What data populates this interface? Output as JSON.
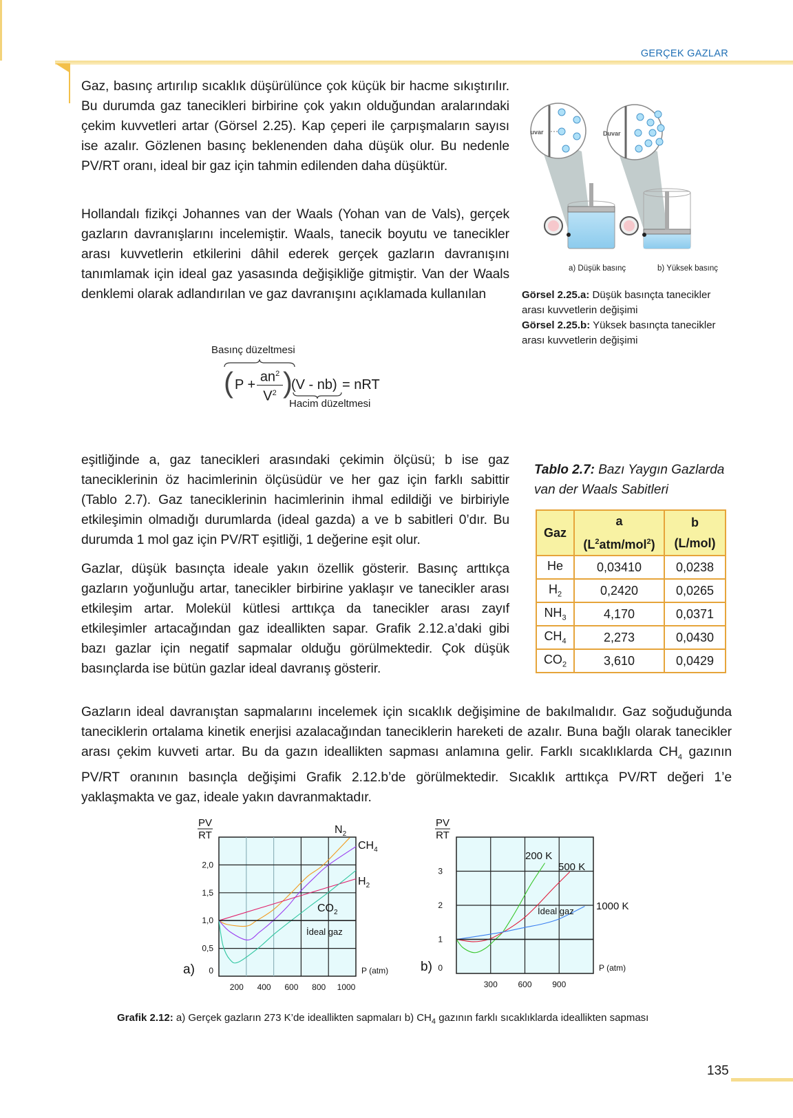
{
  "header": {
    "running_title": "GERÇEK GAZLAR"
  },
  "paragraphs": [
    "Gaz, basınç artırılıp sıcaklık düşürülünce çok küçük bir hacme sıkıştırılır. Bu durumda gaz tanecikleri birbirine çok yakın olduğundan aralarındaki çekim kuvvetleri artar (Görsel 2.25). Kap çeperi ile çarpışmaların sayısı ise azalır. Gözlenen basınç beklenenden daha düşük olur. Bu nedenle PV/RT oranı, ideal bir gaz için tahmin edilenden daha düşüktür.",
    "Hollandalı fizikçi Johannes van der Waals (Yohan van de Vals), gerçek gazların davranışlarını incelemiştir. Waals, tanecik boyutu ve tanecikler arası kuvvetlerin etkilerini dâhil ederek gerçek gazların davranışını tanımlamak için ideal gaz yasasında değişikliğe gitmiştir. Van der Waals denklemi olarak adlandırılan ve gaz davranışını açıklamada kullanılan",
    "eşitliğinde a, gaz tanecikleri arasındaki çekimin ölçüsü; b ise gaz taneciklerinin öz hacimlerinin ölçüsüdür ve her gaz için farklı sabittir (Tablo 2.7). Gaz taneciklerinin hacimlerinin ihmal edildiği ve birbiriyle etkileşimin olmadığı durumlarda (ideal gazda) a ve b sabitleri 0’dır. Bu durumda 1 mol gaz için PV/RT eşitliği, 1 değerine eşit olur.",
    "Gazlar, düşük basınçta ideale yakın özellik gösterir. Basınç arttıkça gazların yoğunluğu artar, tanecikler birbirine yaklaşır ve tanecikler arası etkileşim artar. Molekül kütlesi arttıkça da tanecikler arası zayıf etkileşimler artacağından gaz ideallikten sapar. Grafik 2.12.a’daki gibi bazı gazlar için negatif sapmalar olduğu görülmektedir. Çok düşük basınçlarda ise bütün gazlar ideal davranış gösterir."
  ],
  "paragraph5": {
    "part1": "Gazların ideal davranıştan sapmalarını incelemek için sıcaklık değişimine de bakılmalıdır. Gaz soğuduğunda taneciklerin ortalama kinetik enerjisi azalacağından taneciklerin hareketi de azalır. Buna bağlı olarak tanecikler arası çekim kuvveti artar. Bu da gazın ideallikten sapması anlamına gelir. Farklı sıcaklıklarda CH",
    "sub": "4",
    "part2": " gazının PV/RT oranının basınçla değişimi Grafik 2.12.b’de görülmektedir. Sıcaklık arttıkça PV/RT değeri 1’e yaklaşmakta ve gaz, ideale yakın davranmaktadır."
  },
  "equation": {
    "top_label": "Basınç düzeltmesi",
    "bottom_label": "Hacim düzeltmesi",
    "p_plus": "P +",
    "numerator": "an",
    "num_exp": "2",
    "denominator": "V",
    "den_exp": "2",
    "volume_term": "(V - nb)",
    "rhs": "= nRT"
  },
  "figure": {
    "wall_label": "Duvar",
    "label_a": "a) Düşük basınç",
    "label_b": "b) Yüksek basınç",
    "caption_a_bold": "Görsel 2.25.a:",
    "caption_a": " Düşük basınçta tanecikler arası kuvvetlerin değişimi",
    "caption_b_bold": "Görsel 2.25.b:",
    "caption_b": " Yüksek basınçta tanecikler arası kuvvetlerin değişimi"
  },
  "table": {
    "title_bold": "Tablo 2.7:",
    "title": " Bazı Yaygın Gazlarda van der Waals Sabitleri",
    "headers": {
      "gaz": "Gaz",
      "a": "a",
      "a_unit_pre": "(L",
      "a_unit_exp": "2",
      "a_unit_mid": "atm/mol",
      "a_unit_exp2": "2",
      "a_unit_post": ")",
      "b": "b",
      "b_unit": "(L/mol)"
    },
    "rows": [
      {
        "gas": "He",
        "sub": "",
        "a": "0,03410",
        "b": "0,0238"
      },
      {
        "gas": "H",
        "sub": "2",
        "a": "0,2420",
        "b": "0,0265"
      },
      {
        "gas": "NH",
        "sub": "3",
        "a": "4,170",
        "b": "0,0371"
      },
      {
        "gas": "CH",
        "sub": "4",
        "a": "2,273",
        "b": "0,0430"
      },
      {
        "gas": "CO",
        "sub": "2",
        "a": "3,610",
        "b": "0,0429"
      }
    ],
    "border_color": "#e6a43a",
    "header_bg": "#f8f2a3"
  },
  "chart_data": [
    {
      "type": "line",
      "panel_label": "a)",
      "ylabel_num": "PV",
      "ylabel_den": "RT",
      "xlabel": "P (atm)",
      "xlim": [
        0,
        1000
      ],
      "ylim": [
        0,
        2.5
      ],
      "xticks": [
        200,
        400,
        600,
        800,
        1000
      ],
      "xtick_labels": [
        "200",
        "400",
        "600",
        "800",
        "1000"
      ],
      "yticks": [
        0,
        0.5,
        1.0,
        1.5,
        2.0
      ],
      "ytick_labels": [
        "0",
        "0,5",
        "1,0",
        "1,5",
        "2,0"
      ],
      "grid": true,
      "background": "#e6fafc",
      "ideal_label": "İdeal gaz",
      "series": [
        {
          "name": "N₂",
          "color": "#f29b1f",
          "x": [
            0,
            60,
            200,
            276,
            400,
            528,
            650,
            762,
            955
          ],
          "y": [
            1.0,
            0.93,
            0.9,
            1.0,
            1.2,
            1.5,
            1.8,
            2.0,
            2.49
          ]
        },
        {
          "name": "CH₄",
          "color": "#9b3ff0",
          "x": [
            0,
            80,
            209,
            300,
            397,
            500,
            586,
            700,
            800,
            1000
          ],
          "y": [
            1.0,
            0.8,
            0.65,
            0.8,
            1.0,
            1.25,
            1.5,
            1.78,
            2.0,
            2.33
          ]
        },
        {
          "name": "H₂",
          "color": "#e0206a",
          "x": [
            0,
            1000
          ],
          "y": [
            1.0,
            1.75
          ]
        },
        {
          "name": "CO₂",
          "color": "#2fc6a0",
          "x": [
            0,
            30,
            80,
            140,
            285,
            400,
            528,
            660,
            796,
            1000
          ],
          "y": [
            1.0,
            0.55,
            0.3,
            0.25,
            0.5,
            0.75,
            1.0,
            1.25,
            1.5,
            1.9
          ]
        },
        {
          "name": "İdeal gaz",
          "color": "#222222",
          "x": [
            0,
            1000
          ],
          "y": [
            1.0,
            1.0
          ]
        }
      ],
      "labels": {
        "n2": "N",
        "n2_sub": "2",
        "ch4": "CH",
        "ch4_sub": "4",
        "h2": "H",
        "h2_sub": "2",
        "co2": "CO",
        "co2_sub": "2"
      }
    },
    {
      "type": "line",
      "panel_label": "b)",
      "ylabel_num": "PV",
      "ylabel_den": "RT",
      "xlabel": "P (atm)",
      "xlim": [
        0,
        1200
      ],
      "ylim": [
        0,
        4
      ],
      "xticks": [
        300,
        600,
        900
      ],
      "xtick_labels": [
        "300",
        "600",
        "900"
      ],
      "yticks": [
        0,
        1,
        2,
        3
      ],
      "ytick_labels": [
        "0",
        "1",
        "2",
        "3"
      ],
      "grid": true,
      "background": "#e6fafc",
      "ideal_label": "İdeal gaz",
      "series": [
        {
          "name": "200 K",
          "color": "#38c62a",
          "x": [
            0,
            60,
            161,
            260,
            342,
            403,
            480,
            550,
            650,
            775
          ],
          "y": [
            1.0,
            0.75,
            0.61,
            0.75,
            1.0,
            1.2,
            1.6,
            2.0,
            2.6,
            3.24
          ]
        },
        {
          "name": "500 K",
          "color": "#e01e3c",
          "x": [
            0,
            150,
            282,
            403,
            500,
            600,
            709,
            850,
            993
          ],
          "y": [
            1.0,
            0.93,
            1.0,
            1.2,
            1.4,
            1.65,
            2.0,
            2.5,
            2.98
          ]
        },
        {
          "name": "1000 K",
          "color": "#3a7ff0",
          "x": [
            0,
            200,
            383,
            600,
            750,
            901,
            1124
          ],
          "y": [
            1.0,
            1.1,
            1.2,
            1.35,
            1.45,
            1.6,
            1.97
          ]
        },
        {
          "name": "İdeal gaz",
          "color": "#222222",
          "x": [
            0,
            1200
          ],
          "y": [
            1.0,
            1.0
          ]
        }
      ]
    }
  ],
  "chart_caption": {
    "bold": "Grafik 2.12:",
    "part1": " a) Gerçek gazların 273 K’de ideallikten sapmaları b) CH",
    "sub": "4",
    "part2": " gazının farklı sıcaklıklarda ideallikten sapması"
  },
  "page_number": "135",
  "colors": {
    "accent": "#f3c04a",
    "header_text": "#1f6fb5"
  }
}
